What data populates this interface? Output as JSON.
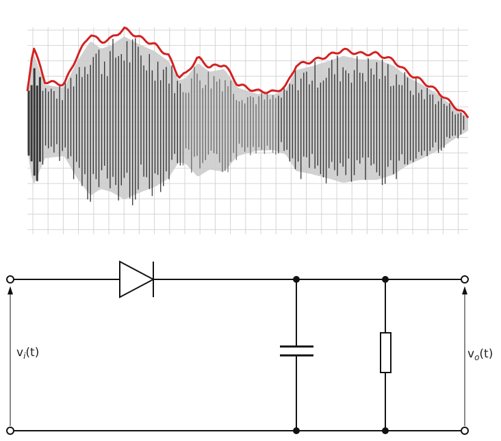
{
  "colors": {
    "grid": "#d4d4d4",
    "waveform": "#1c1c1c",
    "envelope": "#d42020",
    "wire": "#111111"
  },
  "circuit": {
    "input_label": {
      "main": "v",
      "sub": "i",
      "rest": "(t)"
    },
    "output_label": {
      "main": "v",
      "sub": "o",
      "rest": "(t)"
    },
    "components": [
      "diode",
      "capacitor",
      "resistor"
    ]
  },
  "waveform": {
    "description_free": true,
    "envelope": [
      [
        0,
        0.35
      ],
      [
        0.4,
        0.82
      ],
      [
        1.2,
        0.45
      ],
      [
        2.5,
        0.42
      ],
      [
        3.4,
        0.72
      ],
      [
        4.3,
        0.95
      ],
      [
        5.0,
        0.86
      ],
      [
        5.7,
        0.9
      ],
      [
        6.6,
        1.0
      ],
      [
        7.5,
        0.92
      ],
      [
        8.7,
        0.83
      ],
      [
        9.6,
        0.72
      ],
      [
        10.3,
        0.5
      ],
      [
        10.8,
        0.53
      ],
      [
        11.6,
        0.7
      ],
      [
        12.4,
        0.6
      ],
      [
        13.4,
        0.63
      ],
      [
        14.3,
        0.42
      ],
      [
        15.6,
        0.35
      ],
      [
        16.8,
        0.34
      ],
      [
        17.6,
        0.4
      ],
      [
        18.3,
        0.62
      ],
      [
        19.3,
        0.66
      ],
      [
        20.5,
        0.72
      ],
      [
        21.5,
        0.78
      ],
      [
        22.6,
        0.74
      ],
      [
        23.8,
        0.74
      ],
      [
        24.9,
        0.67
      ],
      [
        25.9,
        0.54
      ],
      [
        26.9,
        0.45
      ],
      [
        27.9,
        0.35
      ],
      [
        29.0,
        0.2
      ],
      [
        30.0,
        0.08
      ]
    ],
    "x_range": [
      0,
      30
    ],
    "y_range": [
      -1.45,
      1.45
    ]
  }
}
